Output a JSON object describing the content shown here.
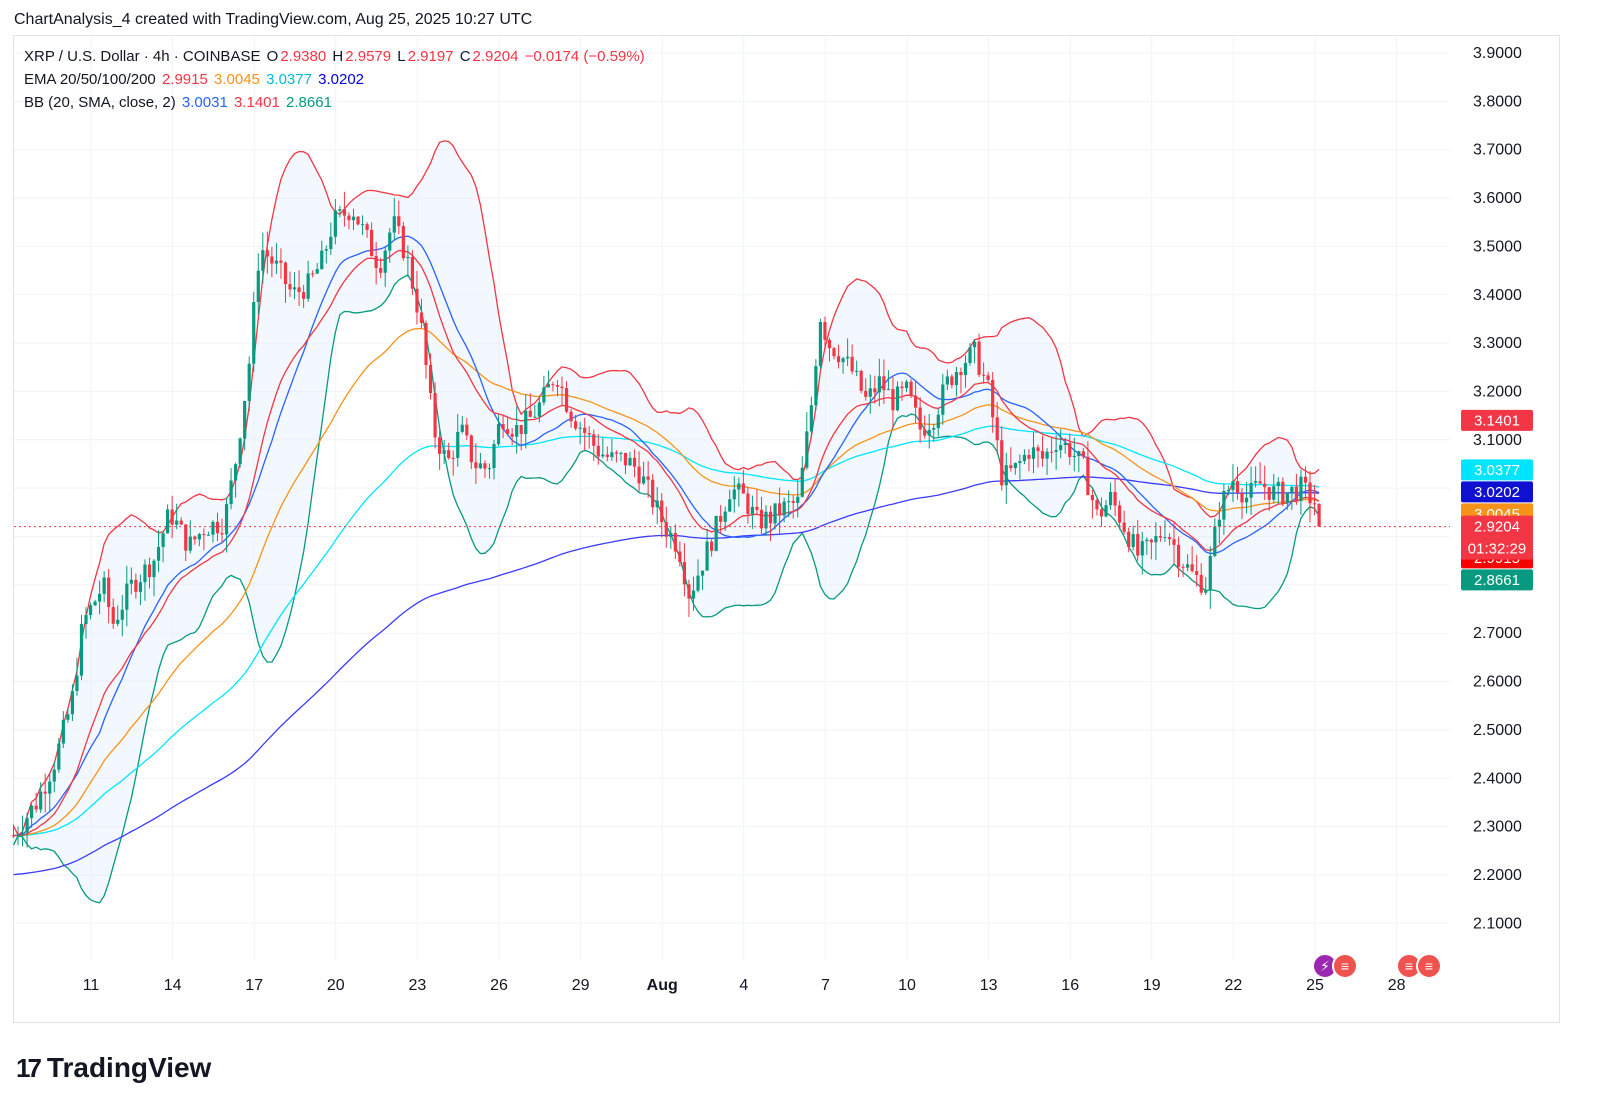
{
  "header": {
    "attribution": "ChartAnalysis_4 created with TradingView.com, Aug 25, 2025 10:27 UTC"
  },
  "legend": {
    "symbol": "XRP / U.S. Dollar · 4h · COINBASE",
    "ohlc": {
      "o_label": "O",
      "o": "2.9380",
      "h_label": "H",
      "h": "2.9579",
      "l_label": "L",
      "l": "2.9197",
      "c_label": "C",
      "c": "2.9204",
      "change": "−0.0174 (−0.59%)"
    },
    "ema": {
      "label": "EMA 20/50/100/200",
      "ema20": "2.9915",
      "ema50": "3.0045",
      "ema100": "3.0377",
      "ema200": "3.0202"
    },
    "bb": {
      "label": "BB (20, SMA, close, 2)",
      "basis": "3.0031",
      "upper": "3.1401",
      "lower": "2.8661"
    }
  },
  "branding": {
    "logo_text": "TradingView"
  },
  "colors": {
    "up": "#089981",
    "down": "#f23645",
    "ema20": "#f23645",
    "ema50": "#f7931a",
    "ema100": "#00e5ff",
    "ema200": "#3c3cff",
    "bb_basis": "#2962ff",
    "bb_upper": "#f23645",
    "bb_lower": "#089981",
    "band_fill": "#e3effa"
  },
  "chart_data": {
    "type": "candlestick",
    "symbol": "XRP / U.S. Dollar",
    "interval": "4h",
    "exchange": "COINBASE",
    "ylim": [
      2.02,
      3.93
    ],
    "y_ticks": [
      "3.9000",
      "3.8000",
      "3.7000",
      "3.6000",
      "3.5000",
      "3.4000",
      "3.3000",
      "3.2000",
      "3.1000",
      "3.0000",
      "2.9000",
      "2.8000",
      "2.7000",
      "2.6000",
      "2.5000",
      "2.4000",
      "2.3000",
      "2.2000",
      "2.1000"
    ],
    "x_ticks": [
      {
        "label": "11",
        "day": 0
      },
      {
        "label": "14",
        "day": 3
      },
      {
        "label": "17",
        "day": 6
      },
      {
        "label": "20",
        "day": 9
      },
      {
        "label": "23",
        "day": 12
      },
      {
        "label": "26",
        "day": 15
      },
      {
        "label": "29",
        "day": 18
      },
      {
        "label": "Aug",
        "day": 21
      },
      {
        "label": "4",
        "day": 24
      },
      {
        "label": "7",
        "day": 27
      },
      {
        "label": "10",
        "day": 30
      },
      {
        "label": "13",
        "day": 33
      },
      {
        "label": "16",
        "day": 36
      },
      {
        "label": "19",
        "day": 39
      },
      {
        "label": "22",
        "day": 42
      },
      {
        "label": "25",
        "day": 45
      },
      {
        "label": "28",
        "day": 48
      }
    ],
    "price_anchors": [
      [
        -3.0,
        2.27
      ],
      [
        -2.0,
        2.35
      ],
      [
        -1.3,
        2.44
      ],
      [
        -0.7,
        2.56
      ],
      [
        -0.3,
        2.72
      ],
      [
        0.45,
        2.8
      ],
      [
        0.8,
        2.72
      ],
      [
        1.5,
        2.8
      ],
      [
        2.3,
        2.85
      ],
      [
        2.9,
        2.95
      ],
      [
        3.6,
        2.88
      ],
      [
        4.2,
        2.92
      ],
      [
        4.9,
        2.93
      ],
      [
        5.3,
        3.05
      ],
      [
        5.8,
        3.25
      ],
      [
        6.2,
        3.5
      ],
      [
        6.5,
        3.48
      ],
      [
        6.9,
        3.45
      ],
      [
        7.4,
        3.4
      ],
      [
        8.0,
        3.42
      ],
      [
        8.5,
        3.47
      ],
      [
        8.9,
        3.55
      ],
      [
        9.6,
        3.58
      ],
      [
        10.1,
        3.52
      ],
      [
        10.6,
        3.46
      ],
      [
        11.1,
        3.55
      ],
      [
        11.6,
        3.48
      ],
      [
        12.1,
        3.35
      ],
      [
        12.6,
        3.12
      ],
      [
        13.1,
        3.05
      ],
      [
        13.6,
        3.12
      ],
      [
        14.1,
        3.05
      ],
      [
        14.6,
        3.04
      ],
      [
        15.1,
        3.15
      ],
      [
        15.6,
        3.12
      ],
      [
        16.1,
        3.14
      ],
      [
        16.6,
        3.18
      ],
      [
        17.1,
        3.24
      ],
      [
        17.6,
        3.16
      ],
      [
        18.1,
        3.12
      ],
      [
        18.6,
        3.08
      ],
      [
        19.1,
        3.06
      ],
      [
        19.6,
        3.06
      ],
      [
        20.1,
        3.04
      ],
      [
        20.6,
        2.98
      ],
      [
        21.1,
        2.92
      ],
      [
        21.6,
        2.88
      ],
      [
        22.0,
        2.78
      ],
      [
        22.5,
        2.85
      ],
      [
        23.0,
        2.92
      ],
      [
        23.5,
        3.0
      ],
      [
        24.0,
        2.98
      ],
      [
        24.5,
        2.93
      ],
      [
        25.0,
        2.94
      ],
      [
        25.5,
        2.96
      ],
      [
        26.0,
        2.97
      ],
      [
        26.5,
        3.18
      ],
      [
        26.8,
        3.36
      ],
      [
        27.1,
        3.3
      ],
      [
        27.5,
        3.28
      ],
      [
        28.0,
        3.24
      ],
      [
        28.5,
        3.18
      ],
      [
        29.0,
        3.22
      ],
      [
        29.5,
        3.18
      ],
      [
        30.0,
        3.2
      ],
      [
        30.5,
        3.12
      ],
      [
        31.0,
        3.15
      ],
      [
        31.5,
        3.22
      ],
      [
        32.0,
        3.26
      ],
      [
        32.5,
        3.28
      ],
      [
        33.0,
        3.2
      ],
      [
        33.5,
        3.02
      ],
      [
        34.0,
        3.04
      ],
      [
        34.5,
        3.08
      ],
      [
        35.0,
        3.06
      ],
      [
        35.5,
        3.1
      ],
      [
        36.0,
        3.08
      ],
      [
        36.5,
        3.04
      ],
      [
        37.0,
        2.94
      ],
      [
        37.5,
        2.98
      ],
      [
        38.0,
        2.92
      ],
      [
        38.5,
        2.86
      ],
      [
        39.0,
        2.88
      ],
      [
        39.5,
        2.92
      ],
      [
        40.0,
        2.86
      ],
      [
        40.5,
        2.82
      ],
      [
        41.0,
        2.8
      ],
      [
        41.5,
        2.96
      ],
      [
        42.0,
        3.02
      ],
      [
        42.5,
        2.98
      ],
      [
        43.0,
        3.01
      ],
      [
        43.5,
        2.99
      ],
      [
        44.0,
        2.99
      ],
      [
        44.5,
        3.0
      ],
      [
        45.0,
        2.97
      ],
      [
        45.3,
        2.92
      ]
    ],
    "last_price": {
      "value": 2.9204,
      "label": "2.9204",
      "countdown": "01:32:29"
    },
    "price_labels": [
      {
        "name": "bb-upper",
        "value": 3.1401,
        "label": "3.1401",
        "color": "#f23645"
      },
      {
        "name": "ema100",
        "value": 3.0377,
        "label": "3.0377",
        "color": "#00e5ff"
      },
      {
        "name": "ema200",
        "value": 3.0202,
        "label": "3.0202",
        "color": "#1010d0"
      },
      {
        "name": "ema50",
        "value": 3.0045,
        "label": "3.0045",
        "color": "#f7931a"
      },
      {
        "name": "bb-basis",
        "value": 3.0031,
        "label": "3.0031",
        "color": "#2962ff"
      },
      {
        "name": "ema20",
        "value": 2.9915,
        "label": "2.9915",
        "color": "#f60000"
      },
      {
        "name": "bb-lower",
        "value": 2.8661,
        "label": "2.8661",
        "color": "#089981"
      }
    ]
  }
}
